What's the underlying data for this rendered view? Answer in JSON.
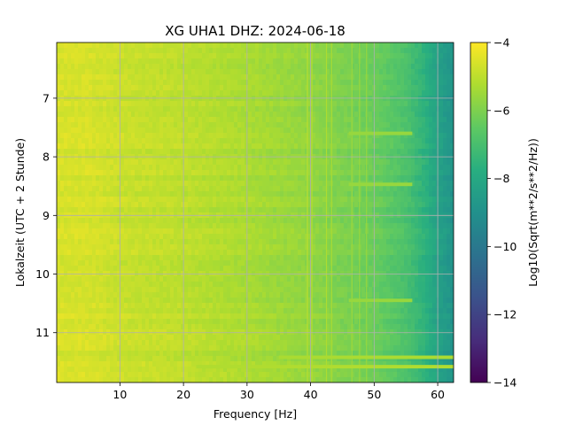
{
  "chart_data": {
    "type": "heatmap",
    "title": "XG UHA1  DHZ: 2024-06-18",
    "xlabel": "Frequency [Hz]",
    "ylabel": "Lokalzeit (UTC + 2 Stunde)",
    "colorbar_label": "Log10(Sqrt(m**2/s**2/Hz))",
    "xlim": [
      0.05,
      62.5
    ],
    "ylim": [
      11.85,
      6.05
    ],
    "x_ticks": [
      10,
      20,
      30,
      40,
      50,
      60
    ],
    "y_ticks": [
      7,
      8,
      9,
      10,
      11
    ],
    "colorbar_ticks": [
      -4,
      -6,
      -8,
      -10,
      -12,
      -14
    ],
    "colorbar_tick_labels": [
      "−4",
      "−6",
      "−8",
      "−10",
      "−12",
      "−14"
    ],
    "clim": [
      -14,
      -4
    ],
    "colormap": "viridis",
    "grid": true,
    "frequency_profile": [
      {
        "x": 1,
        "value": -4.6
      },
      {
        "x": 5,
        "value": -4.6
      },
      {
        "x": 10,
        "value": -4.8
      },
      {
        "x": 20,
        "value": -5.0
      },
      {
        "x": 30,
        "value": -5.3
      },
      {
        "x": 35,
        "value": -5.5
      },
      {
        "x": 40,
        "value": -5.7
      },
      {
        "x": 45,
        "value": -6.0
      },
      {
        "x": 50,
        "value": -6.3
      },
      {
        "x": 55,
        "value": -6.9
      },
      {
        "x": 58,
        "value": -7.6
      },
      {
        "x": 60,
        "value": -8.3
      },
      {
        "x": 62.5,
        "value": -8.9
      }
    ],
    "narrowband_lines_hz": [
      39.5,
      40.2,
      42.5,
      43.3,
      46.5,
      47.7,
      48.8
    ],
    "time_bands": [
      {
        "time": 11.42,
        "fmin": 35,
        "fmax": 62.5,
        "value": -5.3
      },
      {
        "time": 11.58,
        "fmin": 22,
        "fmax": 62.5,
        "value": -5.2
      },
      {
        "time": 8.47,
        "fmin": 46,
        "fmax": 56,
        "value": -5.6
      },
      {
        "time": 7.6,
        "fmin": 46,
        "fmax": 56,
        "value": -5.6
      },
      {
        "time": 10.45,
        "fmin": 46,
        "fmax": 56,
        "value": -5.6
      }
    ]
  }
}
